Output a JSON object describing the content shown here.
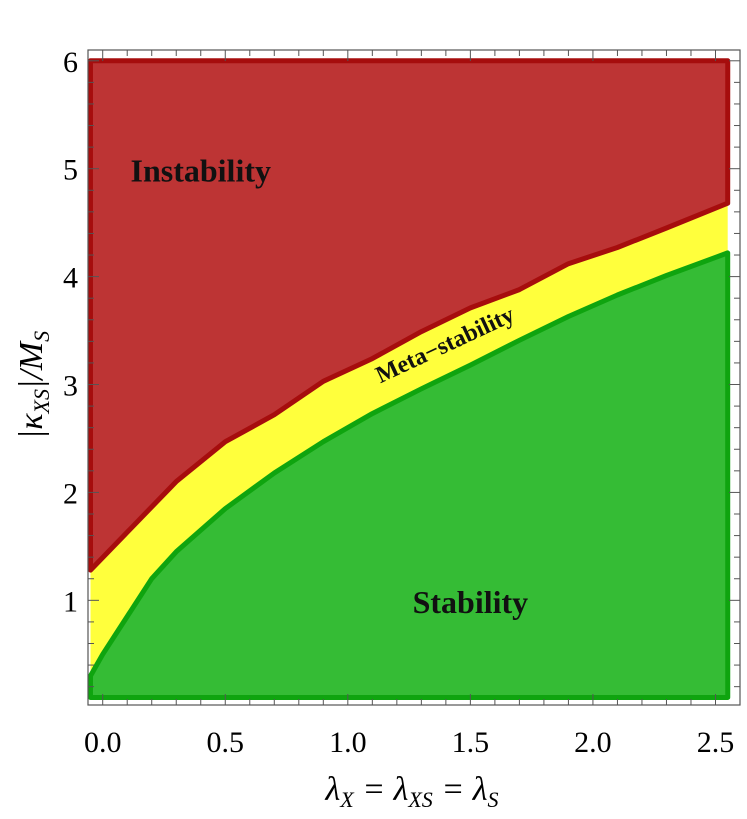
{
  "chart_data": {
    "type": "area",
    "title": "",
    "xlabel_parts": [
      "λ",
      "X",
      " = λ",
      "XS",
      " = λ",
      "S"
    ],
    "ylabel_parts": [
      "|κ",
      "XS",
      "|/M",
      "S"
    ],
    "xlim": [
      -0.06,
      2.6
    ],
    "ylim": [
      0.03,
      6.1
    ],
    "x_ticks": [
      0.0,
      0.5,
      1.0,
      1.5,
      2.0,
      2.5
    ],
    "x_tick_labels": [
      "0.0",
      "0.5",
      "1.0",
      "1.5",
      "2.0",
      "2.5"
    ],
    "y_ticks": [
      1,
      2,
      3,
      4,
      5,
      6
    ],
    "y_tick_labels": [
      "1",
      "2",
      "3",
      "4",
      "5",
      "6"
    ],
    "x_domain": [
      -0.05,
      2.55
    ],
    "y_top": 6.0,
    "y_bottom": 0.1,
    "boundaries": {
      "instability_lower": {
        "x": [
          -0.05,
          0.3,
          0.5,
          0.7,
          0.9,
          1.1,
          1.3,
          1.5,
          1.7,
          1.9,
          2.1,
          2.3,
          2.55
        ],
        "y": [
          1.28,
          2.1,
          2.47,
          2.72,
          3.03,
          3.24,
          3.49,
          3.71,
          3.88,
          4.12,
          4.27,
          4.45,
          4.68
        ]
      },
      "stability_upper": {
        "x": [
          -0.05,
          0.0,
          0.1,
          0.2,
          0.3,
          0.5,
          0.7,
          0.9,
          1.1,
          1.3,
          1.5,
          1.7,
          1.9,
          2.1,
          2.3,
          2.55
        ],
        "y": [
          0.3,
          0.5,
          0.85,
          1.2,
          1.45,
          1.85,
          2.18,
          2.47,
          2.73,
          2.96,
          3.18,
          3.41,
          3.63,
          3.83,
          4.01,
          4.22
        ]
      }
    },
    "regions": [
      {
        "name": "Instability",
        "color": "#bd3434",
        "edge": "#a60d0d",
        "label_x": 0.4,
        "label_y": 4.95,
        "label_size": 32
      },
      {
        "name": "Meta−stability",
        "color": "#ffff3c",
        "edge": "",
        "label_x": 1.4,
        "label_y": 3.35,
        "label_size": 24,
        "label_angle": -25
      },
      {
        "name": "Stability",
        "color": "#35bc35",
        "edge": "#0fa40f",
        "label_x": 1.5,
        "label_y": 0.95,
        "label_size": 32
      }
    ],
    "frame_color": "#555555",
    "grid": false,
    "legend": "none"
  }
}
